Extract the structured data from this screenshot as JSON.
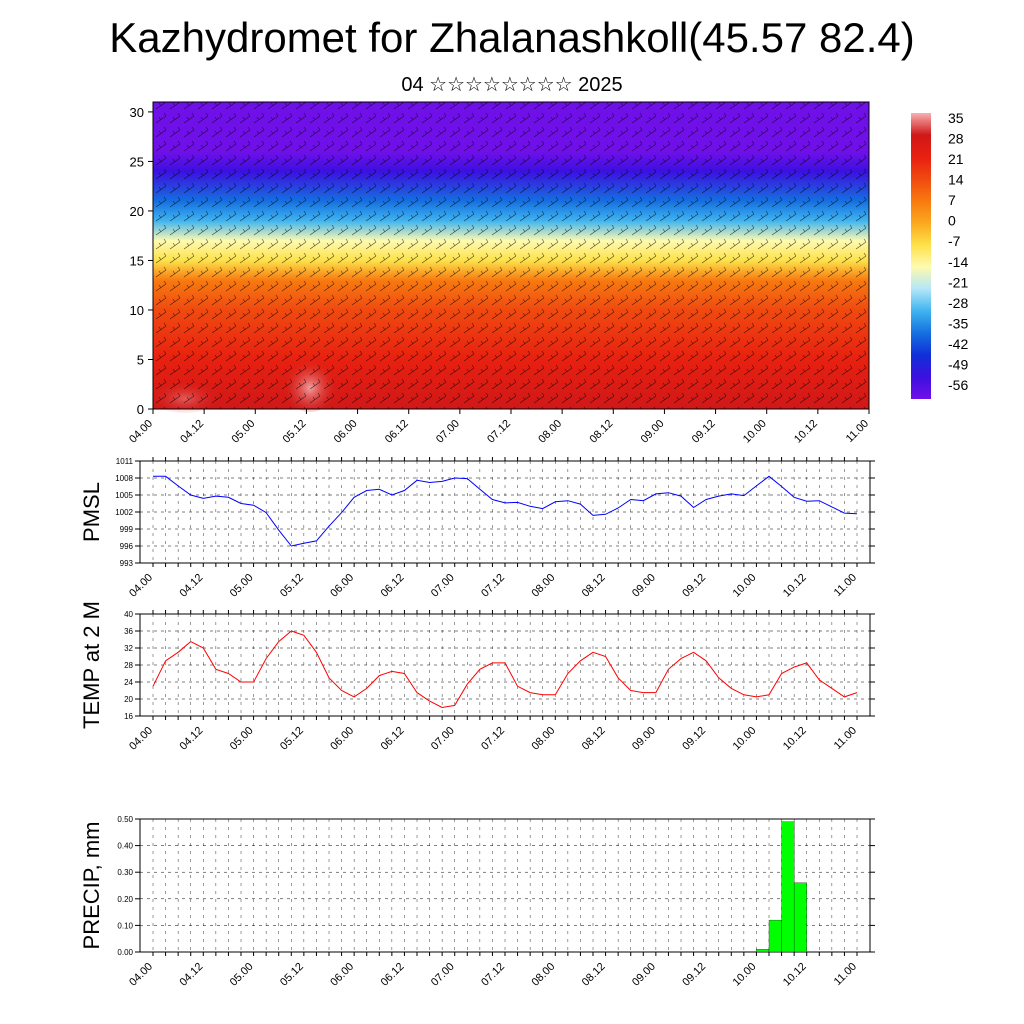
{
  "title": "Kazhydromet for Zhalanashkoll(45.57 82.4)",
  "subtitle": "04 ☆☆☆☆☆☆☆☆ 2025",
  "time_ticks": [
    "04.00",
    "04.12",
    "05.00",
    "05.12",
    "06.00",
    "06.12",
    "07.00",
    "07.12",
    "08.00",
    "08.12",
    "09.00",
    "09.12",
    "10.00",
    "10.12",
    "11.00"
  ],
  "colors": {
    "pmsl_line": "#0000ff",
    "temp_line": "#ff0000",
    "precip_bar": "#00ff00"
  },
  "chart_data": [
    {
      "type": "heatmap",
      "name": "cross-section",
      "description_text": "",
      "y_ticks": [
        "0",
        "5",
        "10",
        "15",
        "20",
        "25",
        "30"
      ],
      "ylim": [
        0,
        31
      ],
      "colorbar": {
        "labels": [
          "35",
          "28",
          "21",
          "14",
          "7",
          "0",
          "-7",
          "-14",
          "-21",
          "-28",
          "-35",
          "-42",
          "-49",
          "-56"
        ],
        "colors": [
          "#f5b0b0",
          "#d01818",
          "#e82010",
          "#f04a10",
          "#f87a10",
          "#fba820",
          "#fde24a",
          "#fefab0",
          "#b4e6f8",
          "#40b4f0",
          "#1470e0",
          "#1030d8",
          "#3c10e0",
          "#7010e8"
        ]
      },
      "bands": [
        {
          "level": 0,
          "value": 30
        },
        {
          "level": 5,
          "value": 24
        },
        {
          "level": 10,
          "value": 16
        },
        {
          "level": 13,
          "value": 4
        },
        {
          "level": 15,
          "value": -4
        },
        {
          "level": 17,
          "value": -14
        },
        {
          "level": 19,
          "value": -26
        },
        {
          "level": 21,
          "value": -36
        },
        {
          "level": 24,
          "value": -50
        },
        {
          "level": 26,
          "value": -58
        },
        {
          "level": 31,
          "value": -60
        }
      ]
    },
    {
      "type": "line",
      "name": "PMSL",
      "ylabel": "PMSL",
      "ylim": [
        993,
        1011
      ],
      "y_ticks": [
        993,
        996,
        999,
        1002,
        1005,
        1008,
        1011
      ],
      "x_step_hours": 3,
      "values": [
        1008.3,
        1008.3,
        1006.6,
        1005.0,
        1004.4,
        1004.8,
        1004.6,
        1003.5,
        1003.2,
        1001.9,
        998.8,
        996.0,
        996.5,
        996.9,
        999.5,
        1001.9,
        1004.6,
        1005.8,
        1006.0,
        1005.0,
        1005.8,
        1007.6,
        1007.2,
        1007.4,
        1008.0,
        1007.9,
        1006.0,
        1004.2,
        1003.6,
        1003.7,
        1003.0,
        1002.6,
        1003.8,
        1004.0,
        1003.4,
        1001.4,
        1001.6,
        1002.7,
        1004.2,
        1004.0,
        1005.2,
        1005.4,
        1004.8,
        1002.8,
        1004.2,
        1004.8,
        1005.2,
        1004.9,
        1006.6,
        1008.3,
        1006.5,
        1004.6,
        1003.9,
        1004.0,
        1002.9,
        1001.8,
        1001.7
      ]
    },
    {
      "type": "line",
      "name": "TEMP at 2 M",
      "ylabel": "TEMP at 2 M",
      "ylim": [
        16,
        40
      ],
      "y_ticks": [
        16,
        20,
        24,
        28,
        32,
        36,
        40
      ],
      "x_step_hours": 3,
      "values": [
        23.0,
        29.0,
        31.0,
        33.5,
        32.0,
        27.0,
        26.0,
        24.0,
        24.0,
        29.5,
        33.5,
        36.0,
        35.0,
        31.0,
        25.0,
        22.0,
        20.5,
        22.5,
        25.5,
        26.5,
        26.0,
        21.5,
        19.5,
        18.0,
        18.5,
        23.5,
        27.0,
        28.5,
        28.5,
        23.0,
        21.5,
        21.0,
        21.0,
        26.0,
        29.0,
        31.0,
        30.0,
        25.0,
        22.0,
        21.5,
        21.5,
        27.0,
        29.5,
        31.0,
        29.0,
        25.0,
        22.5,
        21.0,
        20.5,
        21.0,
        26.0,
        27.5,
        28.5,
        24.5,
        22.5,
        20.5,
        21.5
      ]
    },
    {
      "type": "bar",
      "name": "PRECIP, mm",
      "ylabel": "PRECIP, mm",
      "ylim": [
        0,
        0.5
      ],
      "y_ticks": [
        "0.00",
        "0.10",
        "0.20",
        "0.30",
        "0.40",
        "0.50"
      ],
      "x_step_hours": 3,
      "values": [
        0,
        0,
        0,
        0,
        0,
        0,
        0,
        0,
        0,
        0,
        0,
        0,
        0,
        0,
        0,
        0,
        0,
        0,
        0,
        0,
        0,
        0,
        0,
        0,
        0,
        0,
        0,
        0,
        0,
        0,
        0,
        0,
        0,
        0,
        0,
        0,
        0,
        0,
        0,
        0,
        0,
        0,
        0,
        0,
        0,
        0,
        0,
        0,
        0.01,
        0.12,
        0.49,
        0.26,
        0,
        0,
        0,
        0,
        0
      ]
    }
  ]
}
